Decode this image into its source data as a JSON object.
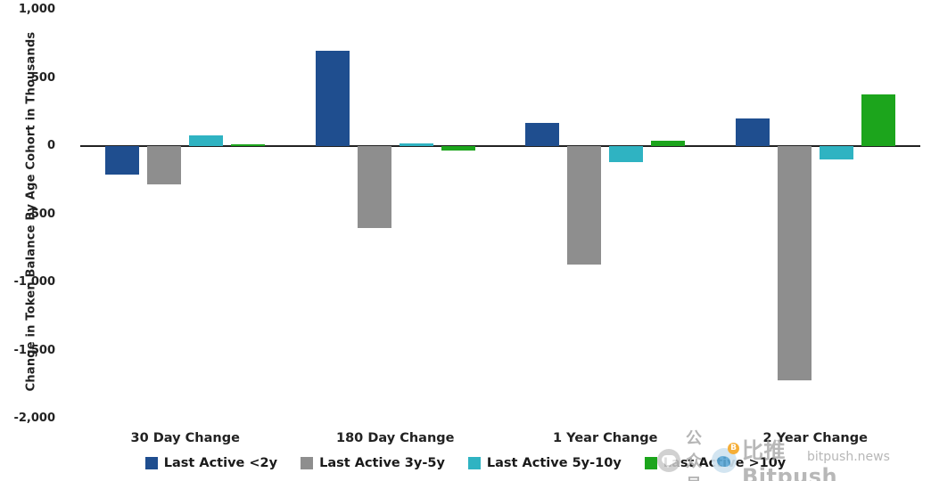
{
  "ylabel": "Change in Token Balance By Age Cohort in Thousands",
  "watermark": {
    "account_label": "公众号",
    "brand": "比推Bitpush",
    "domain": "bitpush.news"
  },
  "chart_data": {
    "type": "bar",
    "title": "",
    "xlabel": "",
    "ylabel": "Change in Token Balance By Age Cohort in Thousands",
    "categories": [
      "30 Day Change",
      "180 Day Change",
      "1 Year Change",
      "2 Year Change"
    ],
    "series": [
      {
        "name": "Last Active <2y",
        "color": "#1f4e8f",
        "values": [
          -210,
          700,
          170,
          200
        ]
      },
      {
        "name": "Last Active 3y-5y",
        "color": "#8e8e8e",
        "values": [
          -280,
          -600,
          -870,
          -1720
        ]
      },
      {
        "name": "Last Active 5y-10y",
        "color": "#2fb3c2",
        "values": [
          80,
          20,
          -120,
          -100
        ]
      },
      {
        "name": "Last Active >10y",
        "color": "#1ca51c",
        "values": [
          8,
          -30,
          40,
          380
        ]
      }
    ],
    "ylim": [
      -2000,
      1000
    ],
    "yticks": [
      1000,
      500,
      0,
      -500,
      -1000,
      -1500,
      -2000
    ],
    "ytick_labels": [
      "1,000",
      "500",
      "0",
      "-500",
      "-1,000",
      "-1,500",
      "-2,000"
    ],
    "grid": false,
    "legend_position": "bottom"
  }
}
